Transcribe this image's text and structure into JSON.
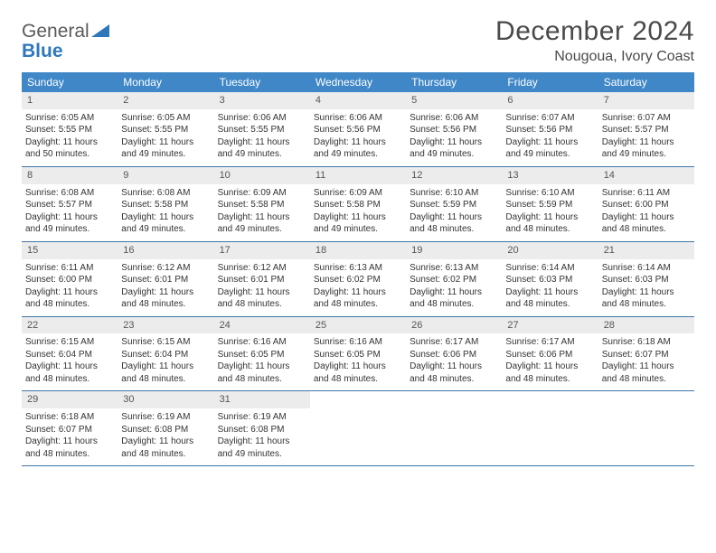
{
  "brand": {
    "part1": "General",
    "part2": "Blue"
  },
  "title": "December 2024",
  "location": "Nougoua, Ivory Coast",
  "colors": {
    "header_bg": "#3f87c7",
    "header_text": "#ffffff",
    "daynum_bg": "#ececec",
    "week_divider": "#3f77a8",
    "body_text": "#333333",
    "brand_gray": "#5a5a5a",
    "brand_blue": "#2f77bb"
  },
  "typography": {
    "title_fontsize": 30,
    "location_fontsize": 16,
    "dow_fontsize": 12,
    "cell_fontsize": 10
  },
  "days_of_week": [
    "Sunday",
    "Monday",
    "Tuesday",
    "Wednesday",
    "Thursday",
    "Friday",
    "Saturday"
  ],
  "weeks": [
    [
      {
        "n": "1",
        "sunrise": "Sunrise: 6:05 AM",
        "sunset": "Sunset: 5:55 PM",
        "daylight": "Daylight: 11 hours and 50 minutes."
      },
      {
        "n": "2",
        "sunrise": "Sunrise: 6:05 AM",
        "sunset": "Sunset: 5:55 PM",
        "daylight": "Daylight: 11 hours and 49 minutes."
      },
      {
        "n": "3",
        "sunrise": "Sunrise: 6:06 AM",
        "sunset": "Sunset: 5:55 PM",
        "daylight": "Daylight: 11 hours and 49 minutes."
      },
      {
        "n": "4",
        "sunrise": "Sunrise: 6:06 AM",
        "sunset": "Sunset: 5:56 PM",
        "daylight": "Daylight: 11 hours and 49 minutes."
      },
      {
        "n": "5",
        "sunrise": "Sunrise: 6:06 AM",
        "sunset": "Sunset: 5:56 PM",
        "daylight": "Daylight: 11 hours and 49 minutes."
      },
      {
        "n": "6",
        "sunrise": "Sunrise: 6:07 AM",
        "sunset": "Sunset: 5:56 PM",
        "daylight": "Daylight: 11 hours and 49 minutes."
      },
      {
        "n": "7",
        "sunrise": "Sunrise: 6:07 AM",
        "sunset": "Sunset: 5:57 PM",
        "daylight": "Daylight: 11 hours and 49 minutes."
      }
    ],
    [
      {
        "n": "8",
        "sunrise": "Sunrise: 6:08 AM",
        "sunset": "Sunset: 5:57 PM",
        "daylight": "Daylight: 11 hours and 49 minutes."
      },
      {
        "n": "9",
        "sunrise": "Sunrise: 6:08 AM",
        "sunset": "Sunset: 5:58 PM",
        "daylight": "Daylight: 11 hours and 49 minutes."
      },
      {
        "n": "10",
        "sunrise": "Sunrise: 6:09 AM",
        "sunset": "Sunset: 5:58 PM",
        "daylight": "Daylight: 11 hours and 49 minutes."
      },
      {
        "n": "11",
        "sunrise": "Sunrise: 6:09 AM",
        "sunset": "Sunset: 5:58 PM",
        "daylight": "Daylight: 11 hours and 49 minutes."
      },
      {
        "n": "12",
        "sunrise": "Sunrise: 6:10 AM",
        "sunset": "Sunset: 5:59 PM",
        "daylight": "Daylight: 11 hours and 48 minutes."
      },
      {
        "n": "13",
        "sunrise": "Sunrise: 6:10 AM",
        "sunset": "Sunset: 5:59 PM",
        "daylight": "Daylight: 11 hours and 48 minutes."
      },
      {
        "n": "14",
        "sunrise": "Sunrise: 6:11 AM",
        "sunset": "Sunset: 6:00 PM",
        "daylight": "Daylight: 11 hours and 48 minutes."
      }
    ],
    [
      {
        "n": "15",
        "sunrise": "Sunrise: 6:11 AM",
        "sunset": "Sunset: 6:00 PM",
        "daylight": "Daylight: 11 hours and 48 minutes."
      },
      {
        "n": "16",
        "sunrise": "Sunrise: 6:12 AM",
        "sunset": "Sunset: 6:01 PM",
        "daylight": "Daylight: 11 hours and 48 minutes."
      },
      {
        "n": "17",
        "sunrise": "Sunrise: 6:12 AM",
        "sunset": "Sunset: 6:01 PM",
        "daylight": "Daylight: 11 hours and 48 minutes."
      },
      {
        "n": "18",
        "sunrise": "Sunrise: 6:13 AM",
        "sunset": "Sunset: 6:02 PM",
        "daylight": "Daylight: 11 hours and 48 minutes."
      },
      {
        "n": "19",
        "sunrise": "Sunrise: 6:13 AM",
        "sunset": "Sunset: 6:02 PM",
        "daylight": "Daylight: 11 hours and 48 minutes."
      },
      {
        "n": "20",
        "sunrise": "Sunrise: 6:14 AM",
        "sunset": "Sunset: 6:03 PM",
        "daylight": "Daylight: 11 hours and 48 minutes."
      },
      {
        "n": "21",
        "sunrise": "Sunrise: 6:14 AM",
        "sunset": "Sunset: 6:03 PM",
        "daylight": "Daylight: 11 hours and 48 minutes."
      }
    ],
    [
      {
        "n": "22",
        "sunrise": "Sunrise: 6:15 AM",
        "sunset": "Sunset: 6:04 PM",
        "daylight": "Daylight: 11 hours and 48 minutes."
      },
      {
        "n": "23",
        "sunrise": "Sunrise: 6:15 AM",
        "sunset": "Sunset: 6:04 PM",
        "daylight": "Daylight: 11 hours and 48 minutes."
      },
      {
        "n": "24",
        "sunrise": "Sunrise: 6:16 AM",
        "sunset": "Sunset: 6:05 PM",
        "daylight": "Daylight: 11 hours and 48 minutes."
      },
      {
        "n": "25",
        "sunrise": "Sunrise: 6:16 AM",
        "sunset": "Sunset: 6:05 PM",
        "daylight": "Daylight: 11 hours and 48 minutes."
      },
      {
        "n": "26",
        "sunrise": "Sunrise: 6:17 AM",
        "sunset": "Sunset: 6:06 PM",
        "daylight": "Daylight: 11 hours and 48 minutes."
      },
      {
        "n": "27",
        "sunrise": "Sunrise: 6:17 AM",
        "sunset": "Sunset: 6:06 PM",
        "daylight": "Daylight: 11 hours and 48 minutes."
      },
      {
        "n": "28",
        "sunrise": "Sunrise: 6:18 AM",
        "sunset": "Sunset: 6:07 PM",
        "daylight": "Daylight: 11 hours and 48 minutes."
      }
    ],
    [
      {
        "n": "29",
        "sunrise": "Sunrise: 6:18 AM",
        "sunset": "Sunset: 6:07 PM",
        "daylight": "Daylight: 11 hours and 48 minutes."
      },
      {
        "n": "30",
        "sunrise": "Sunrise: 6:19 AM",
        "sunset": "Sunset: 6:08 PM",
        "daylight": "Daylight: 11 hours and 48 minutes."
      },
      {
        "n": "31",
        "sunrise": "Sunrise: 6:19 AM",
        "sunset": "Sunset: 6:08 PM",
        "daylight": "Daylight: 11 hours and 49 minutes."
      },
      null,
      null,
      null,
      null
    ]
  ]
}
